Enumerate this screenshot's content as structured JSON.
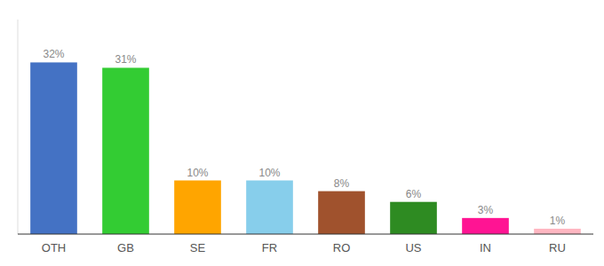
{
  "chart_data": {
    "type": "bar",
    "categories": [
      "OTH",
      "GB",
      "SE",
      "FR",
      "RO",
      "US",
      "IN",
      "RU"
    ],
    "values": [
      32,
      31,
      10,
      10,
      8,
      6,
      3,
      1
    ],
    "value_labels": [
      "32%",
      "31%",
      "10%",
      "10%",
      "8%",
      "6%",
      "3%",
      "1%"
    ],
    "colors": [
      "#4472C4",
      "#33CC33",
      "#FFA500",
      "#87CEEB",
      "#A0522D",
      "#2E8B22",
      "#FF1493",
      "#FFB6C1"
    ],
    "ylim": [
      0,
      40
    ],
    "data_labels": true,
    "tick_labels": "x",
    "grid": false
  }
}
